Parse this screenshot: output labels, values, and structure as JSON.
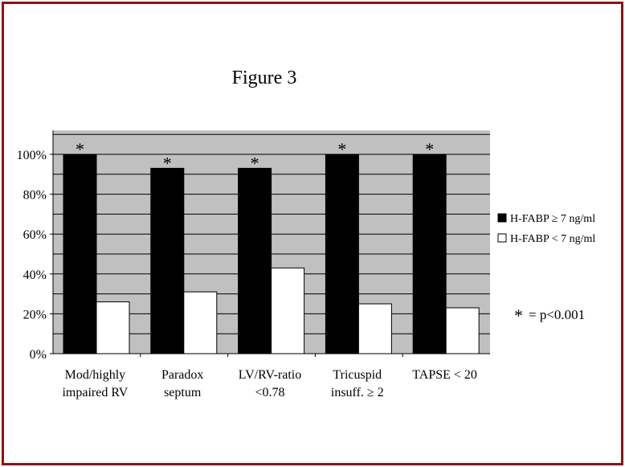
{
  "chart_data": {
    "type": "bar",
    "title": "Figure 3",
    "categories": [
      [
        "Mod/highly",
        "impaired RV"
      ],
      [
        "Paradox",
        "septum"
      ],
      [
        "LV/RV-ratio",
        "<0.78"
      ],
      [
        "Tricuspid",
        "insuff. ≥ 2"
      ],
      [
        "TAPSE < 20"
      ]
    ],
    "series": [
      {
        "name": "H-FABP ≥ 7 ng/ml",
        "color": "#000000",
        "values": [
          100,
          93,
          93,
          100,
          100
        ],
        "significant": [
          true,
          true,
          true,
          true,
          true
        ]
      },
      {
        "name": "H-FABP < 7 ng/ml",
        "color": "#ffffff",
        "values": [
          26,
          31,
          43,
          25,
          23
        ]
      }
    ],
    "ylim": [
      0,
      112
    ],
    "yticks": [
      "0%",
      "20%",
      "40%",
      "60%",
      "80%",
      "100%"
    ],
    "ytick_values": [
      0,
      20,
      40,
      60,
      80,
      100
    ],
    "minor_gridlines_step": 10,
    "grid": true,
    "plot_background": "#c0c0c0",
    "frame_color": "#8b1414",
    "significance_marker": "*",
    "legend_position": "right",
    "annotation": {
      "symbol": "*",
      "text": "= p<0.001"
    }
  }
}
